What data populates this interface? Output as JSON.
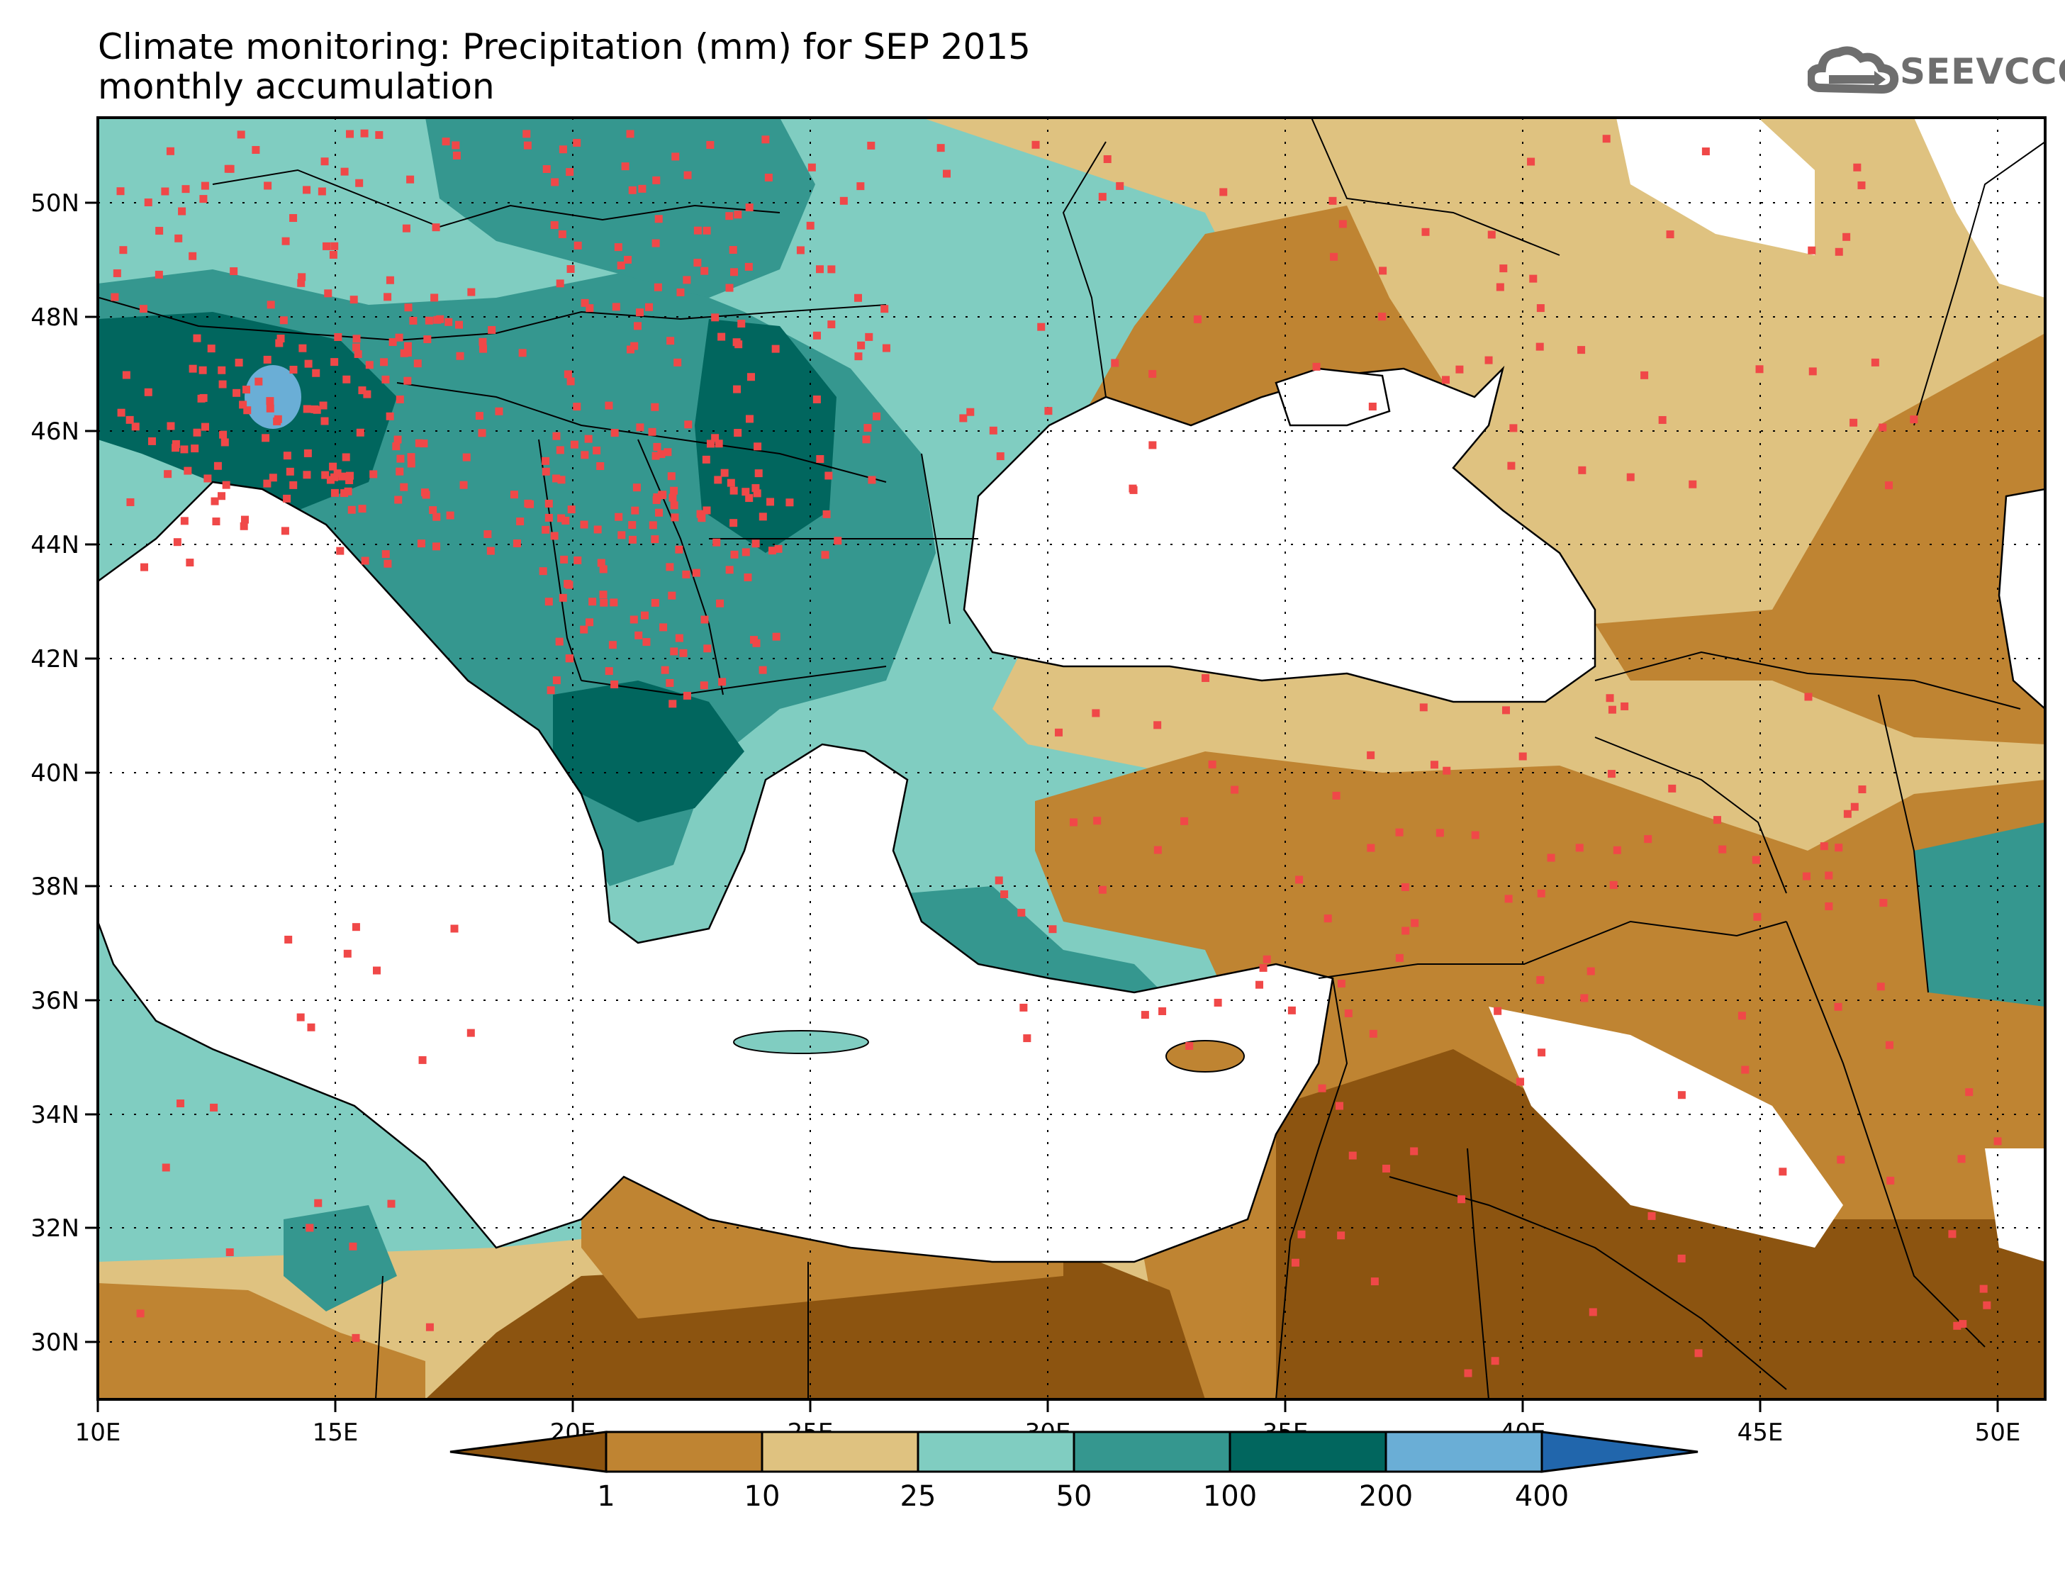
{
  "title": {
    "line1": "Climate monitoring: Precipitation (mm) for SEP 2015",
    "line2": "monthly accumulation"
  },
  "logo": {
    "text": "SEEVCCC",
    "icon": "cloud-icon",
    "color": "#707070"
  },
  "map": {
    "lon_range": [
      10,
      51
    ],
    "lat_range": [
      29,
      51.5
    ],
    "x_ticks": [
      "10E",
      "15E",
      "20E",
      "25E",
      "30E",
      "35E",
      "40E",
      "45E",
      "50E"
    ],
    "y_ticks": [
      "30N",
      "32N",
      "34N",
      "36N",
      "38N",
      "40N",
      "42N",
      "44N",
      "46N",
      "48N",
      "50N"
    ],
    "station_color": "#f04848",
    "sea_color": "#ffffff"
  },
  "colorbar": {
    "labels": [
      "1",
      "10",
      "25",
      "50",
      "100",
      "200",
      "400"
    ],
    "colors": [
      "#8c5410",
      "#bf8432",
      "#dfc280",
      "#80cdc1",
      "#35978f",
      "#01665e",
      "#6aaed6",
      "#2166ac"
    ]
  }
}
